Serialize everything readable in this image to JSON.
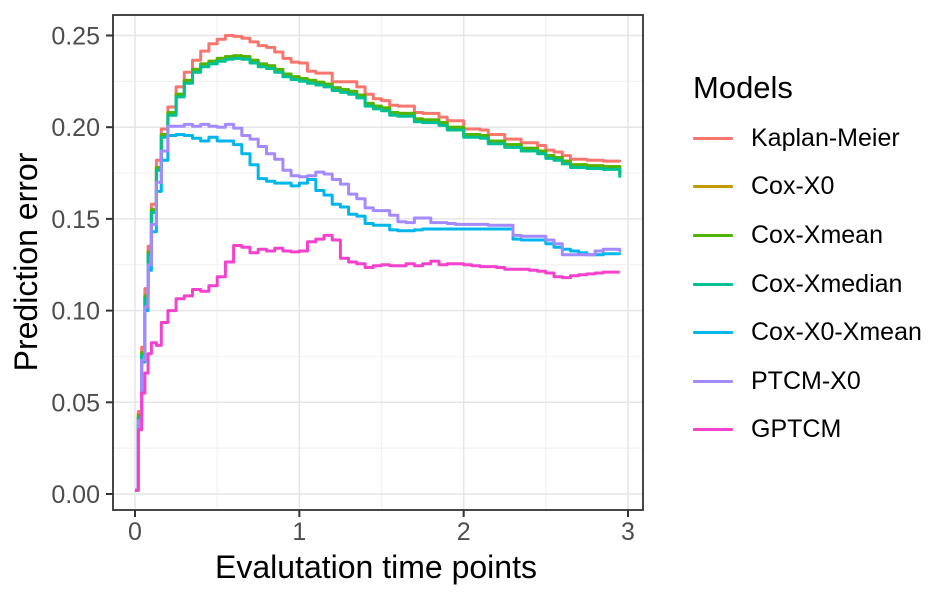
{
  "chart_data": {
    "type": "line",
    "line_style": "step-after",
    "title": "",
    "xlabel": "Evalutation time points",
    "ylabel": "Prediction error",
    "legend_title": "Models",
    "legend_position": "right",
    "grid": "major+minor",
    "xlim": [
      -0.13,
      3.09
    ],
    "ylim": [
      -0.009,
      0.261
    ],
    "x_tick_values": [
      0,
      1,
      2,
      3
    ],
    "x_tick_labels": [
      "0",
      "1",
      "2",
      "3"
    ],
    "x_minor_ticks": [
      0.5,
      1.5,
      2.5
    ],
    "y_tick_values": [
      0.0,
      0.05,
      0.1,
      0.15,
      0.2,
      0.25
    ],
    "y_tick_labels": [
      "0.00",
      "0.05",
      "0.10",
      "0.15",
      "0.20",
      "0.25"
    ],
    "y_minor_ticks": [
      0.025,
      0.075,
      0.125,
      0.175,
      0.225
    ],
    "theme": {
      "panel_bg": "#ffffff",
      "panel_border": "#333333",
      "grid_major": "#e6e6e6",
      "grid_minor": "#f2f2f2",
      "tick_color": "#333333",
      "tick_label_color": "#4d4d4d",
      "text_color": "#000000"
    },
    "x": [
      0,
      0.02,
      0.04,
      0.06,
      0.08,
      0.1,
      0.13,
      0.16,
      0.2,
      0.25,
      0.3,
      0.35,
      0.4,
      0.45,
      0.5,
      0.55,
      0.6,
      0.65,
      0.7,
      0.75,
      0.8,
      0.85,
      0.9,
      0.95,
      1,
      1.05,
      1.1,
      1.15,
      1.2,
      1.25,
      1.3,
      1.35,
      1.4,
      1.45,
      1.5,
      1.55,
      1.6,
      1.65,
      1.7,
      1.75,
      1.8,
      1.85,
      1.9,
      1.95,
      2,
      2.05,
      2.1,
      2.15,
      2.2,
      2.25,
      2.3,
      2.35,
      2.4,
      2.45,
      2.5,
      2.55,
      2.6,
      2.65,
      2.7,
      2.75,
      2.8,
      2.85,
      2.9,
      2.95
    ],
    "series": [
      {
        "name": "Kaplan-Meier",
        "color": "#F8766D",
        "values": [
          0.002,
          0.045,
          0.08,
          0.112,
          0.135,
          0.158,
          0.182,
          0.199,
          0.211,
          0.222,
          0.23,
          0.2365,
          0.2415,
          0.2455,
          0.248,
          0.25,
          0.2495,
          0.2485,
          0.2465,
          0.2445,
          0.2435,
          0.241,
          0.2375,
          0.2355,
          0.235,
          0.2305,
          0.2295,
          0.2295,
          0.2248,
          0.2248,
          0.2248,
          0.222,
          0.218,
          0.2155,
          0.2145,
          0.212,
          0.2115,
          0.2115,
          0.208,
          0.2075,
          0.2075,
          0.2055,
          0.2035,
          0.2035,
          0.199,
          0.199,
          0.1985,
          0.196,
          0.196,
          0.1935,
          0.1935,
          0.1915,
          0.1915,
          0.19,
          0.1875,
          0.1865,
          0.1845,
          0.1825,
          0.1825,
          0.182,
          0.182,
          0.1815,
          0.1815,
          0.181
        ]
      },
      {
        "name": "Cox-X0",
        "color": "#C49A00",
        "values": [
          0.002,
          0.043,
          0.077,
          0.108,
          0.132,
          0.155,
          0.178,
          0.196,
          0.208,
          0.218,
          0.2255,
          0.2315,
          0.2345,
          0.236,
          0.2375,
          0.2385,
          0.239,
          0.2385,
          0.2365,
          0.2345,
          0.2335,
          0.2315,
          0.229,
          0.2275,
          0.2265,
          0.2255,
          0.2245,
          0.2235,
          0.2215,
          0.2205,
          0.2195,
          0.2175,
          0.213,
          0.2115,
          0.2105,
          0.208,
          0.2075,
          0.2075,
          0.2045,
          0.204,
          0.204,
          0.2025,
          0.2,
          0.2,
          0.196,
          0.196,
          0.1955,
          0.1925,
          0.1925,
          0.1905,
          0.1905,
          0.1885,
          0.1885,
          0.187,
          0.1845,
          0.1835,
          0.1815,
          0.1795,
          0.1795,
          0.179,
          0.179,
          0.1785,
          0.1785,
          0.174
        ]
      },
      {
        "name": "Cox-Xmean",
        "color": "#53B400",
        "values": [
          0.002,
          0.043,
          0.077,
          0.108,
          0.132,
          0.155,
          0.178,
          0.196,
          0.208,
          0.218,
          0.2255,
          0.2315,
          0.2345,
          0.236,
          0.2375,
          0.2385,
          0.239,
          0.2385,
          0.2365,
          0.2345,
          0.2335,
          0.2315,
          0.229,
          0.2275,
          0.2265,
          0.2255,
          0.2245,
          0.2235,
          0.2215,
          0.2205,
          0.2195,
          0.2175,
          0.213,
          0.2115,
          0.2105,
          0.208,
          0.2075,
          0.2075,
          0.2045,
          0.204,
          0.204,
          0.2025,
          0.2,
          0.2,
          0.196,
          0.196,
          0.1955,
          0.1925,
          0.1925,
          0.1905,
          0.1905,
          0.1885,
          0.1885,
          0.187,
          0.1845,
          0.1835,
          0.1815,
          0.1795,
          0.1795,
          0.179,
          0.179,
          0.1785,
          0.1785,
          0.174
        ]
      },
      {
        "name": "Cox-Xmedian",
        "color": "#00C094",
        "values": [
          0.002,
          0.0415,
          0.0755,
          0.1065,
          0.1305,
          0.1535,
          0.1765,
          0.1945,
          0.2065,
          0.2165,
          0.224,
          0.23,
          0.233,
          0.2345,
          0.236,
          0.237,
          0.2375,
          0.237,
          0.235,
          0.233,
          0.232,
          0.23,
          0.2275,
          0.226,
          0.225,
          0.224,
          0.223,
          0.222,
          0.22,
          0.219,
          0.218,
          0.216,
          0.2115,
          0.21,
          0.209,
          0.2065,
          0.206,
          0.206,
          0.203,
          0.2025,
          0.2025,
          0.201,
          0.1985,
          0.1985,
          0.1945,
          0.1945,
          0.194,
          0.191,
          0.191,
          0.189,
          0.189,
          0.187,
          0.187,
          0.1855,
          0.183,
          0.182,
          0.18,
          0.178,
          0.178,
          0.1775,
          0.1775,
          0.177,
          0.177,
          0.1725
        ]
      },
      {
        "name": "Cox-X0-Xmean",
        "color": "#00B6EB",
        "values": [
          0.002,
          0.04,
          0.072,
          0.1,
          0.122,
          0.143,
          0.165,
          0.182,
          0.1955,
          0.196,
          0.1955,
          0.194,
          0.1925,
          0.1945,
          0.1925,
          0.1925,
          0.1905,
          0.1855,
          0.1795,
          0.172,
          0.1705,
          0.1695,
          0.1695,
          0.168,
          0.1695,
          0.1715,
          0.1655,
          0.163,
          0.158,
          0.1565,
          0.1525,
          0.1515,
          0.1475,
          0.1465,
          0.1465,
          0.144,
          0.1435,
          0.1435,
          0.144,
          0.1445,
          0.1445,
          0.1445,
          0.1445,
          0.1445,
          0.1445,
          0.1445,
          0.1445,
          0.1445,
          0.1445,
          0.1445,
          0.139,
          0.1385,
          0.1385,
          0.1385,
          0.1365,
          0.1345,
          0.1335,
          0.1325,
          0.1315,
          0.1305,
          0.1305,
          0.131,
          0.131,
          0.1305
        ]
      },
      {
        "name": "PTCM-X0",
        "color": "#A58AFF",
        "values": [
          0.002,
          0.04,
          0.073,
          0.102,
          0.125,
          0.147,
          0.17,
          0.187,
          0.2005,
          0.2005,
          0.2015,
          0.2005,
          0.2015,
          0.2005,
          0.2,
          0.2015,
          0.1995,
          0.1955,
          0.1935,
          0.1895,
          0.1855,
          0.1825,
          0.1765,
          0.1735,
          0.173,
          0.1735,
          0.1755,
          0.1745,
          0.1715,
          0.169,
          0.1635,
          0.161,
          0.156,
          0.1545,
          0.1545,
          0.152,
          0.1485,
          0.148,
          0.1505,
          0.1505,
          0.148,
          0.148,
          0.1475,
          0.147,
          0.147,
          0.147,
          0.147,
          0.1465,
          0.1465,
          0.1465,
          0.141,
          0.1405,
          0.1405,
          0.1405,
          0.1385,
          0.1365,
          0.1305,
          0.1305,
          0.1305,
          0.1305,
          0.1325,
          0.1335,
          0.1335,
          0.132
        ]
      },
      {
        "name": "GPTCM",
        "color": "#F442CD",
        "values": [
          0.002,
          0.035,
          0.055,
          0.066,
          0.0765,
          0.0825,
          0.081,
          0.0935,
          0.1,
          0.1065,
          0.108,
          0.1115,
          0.1105,
          0.1135,
          0.1185,
          0.1265,
          0.1355,
          0.1345,
          0.1315,
          0.1335,
          0.1325,
          0.134,
          0.1325,
          0.132,
          0.1325,
          0.1375,
          0.139,
          0.141,
          0.1385,
          0.1285,
          0.1265,
          0.1255,
          0.1235,
          0.1245,
          0.125,
          0.1245,
          0.1245,
          0.1255,
          0.1245,
          0.1255,
          0.127,
          0.125,
          0.1255,
          0.1255,
          0.125,
          0.1245,
          0.124,
          0.124,
          0.1235,
          0.1225,
          0.1225,
          0.1225,
          0.122,
          0.1215,
          0.1205,
          0.1185,
          0.118,
          0.119,
          0.1195,
          0.12,
          0.1205,
          0.121,
          0.121,
          0.121
        ]
      }
    ]
  }
}
